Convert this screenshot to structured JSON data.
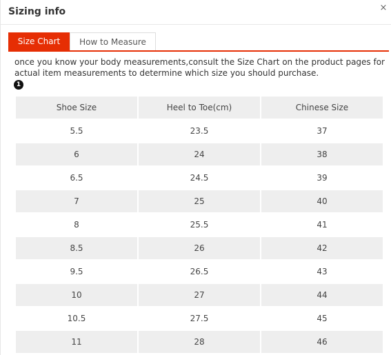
{
  "dialog": {
    "title": "Sizing info",
    "close_glyph": "×",
    "close_icon": "close-icon"
  },
  "tabs": [
    {
      "label": "Size Chart",
      "active": true
    },
    {
      "label": "How to Measure",
      "active": false
    }
  ],
  "colors": {
    "accent": "#e62e04",
    "row_stripe": "#eeeeee"
  },
  "intro_text": "once you know your body measurements,consult the Size Chart on the product pages for actual item measurements to determine which size you should purchase.",
  "step_marker": "1",
  "table": {
    "headers": [
      "Shoe Size",
      "Heel to Toe(cm)",
      "Chinese Size"
    ],
    "rows": [
      [
        "5.5",
        "23.5",
        "37"
      ],
      [
        "6",
        "24",
        "38"
      ],
      [
        "6.5",
        "24.5",
        "39"
      ],
      [
        "7",
        "25",
        "40"
      ],
      [
        "8",
        "25.5",
        "41"
      ],
      [
        "8.5",
        "26",
        "42"
      ],
      [
        "9.5",
        "26.5",
        "43"
      ],
      [
        "10",
        "27",
        "44"
      ],
      [
        "10.5",
        "27.5",
        "45"
      ],
      [
        "11",
        "28",
        "46"
      ]
    ]
  }
}
